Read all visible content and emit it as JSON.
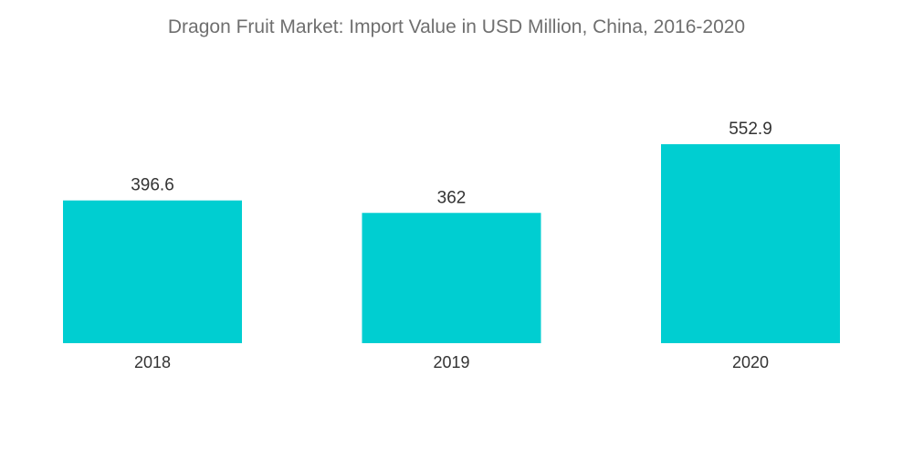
{
  "chart_data": {
    "type": "bar",
    "title": "Dragon Fruit Market: Import Value in USD Million, China, 2016-2020",
    "categories": [
      "2018",
      "2019",
      "2020"
    ],
    "values": [
      396.6,
      362,
      552.9
    ],
    "value_labels": [
      "396.6",
      "362",
      "552.9"
    ],
    "xlabel": "",
    "ylabel": "",
    "ylim": [
      0,
      552.9
    ],
    "grid": false,
    "legend": "none",
    "bar_color": "#00CED1"
  }
}
